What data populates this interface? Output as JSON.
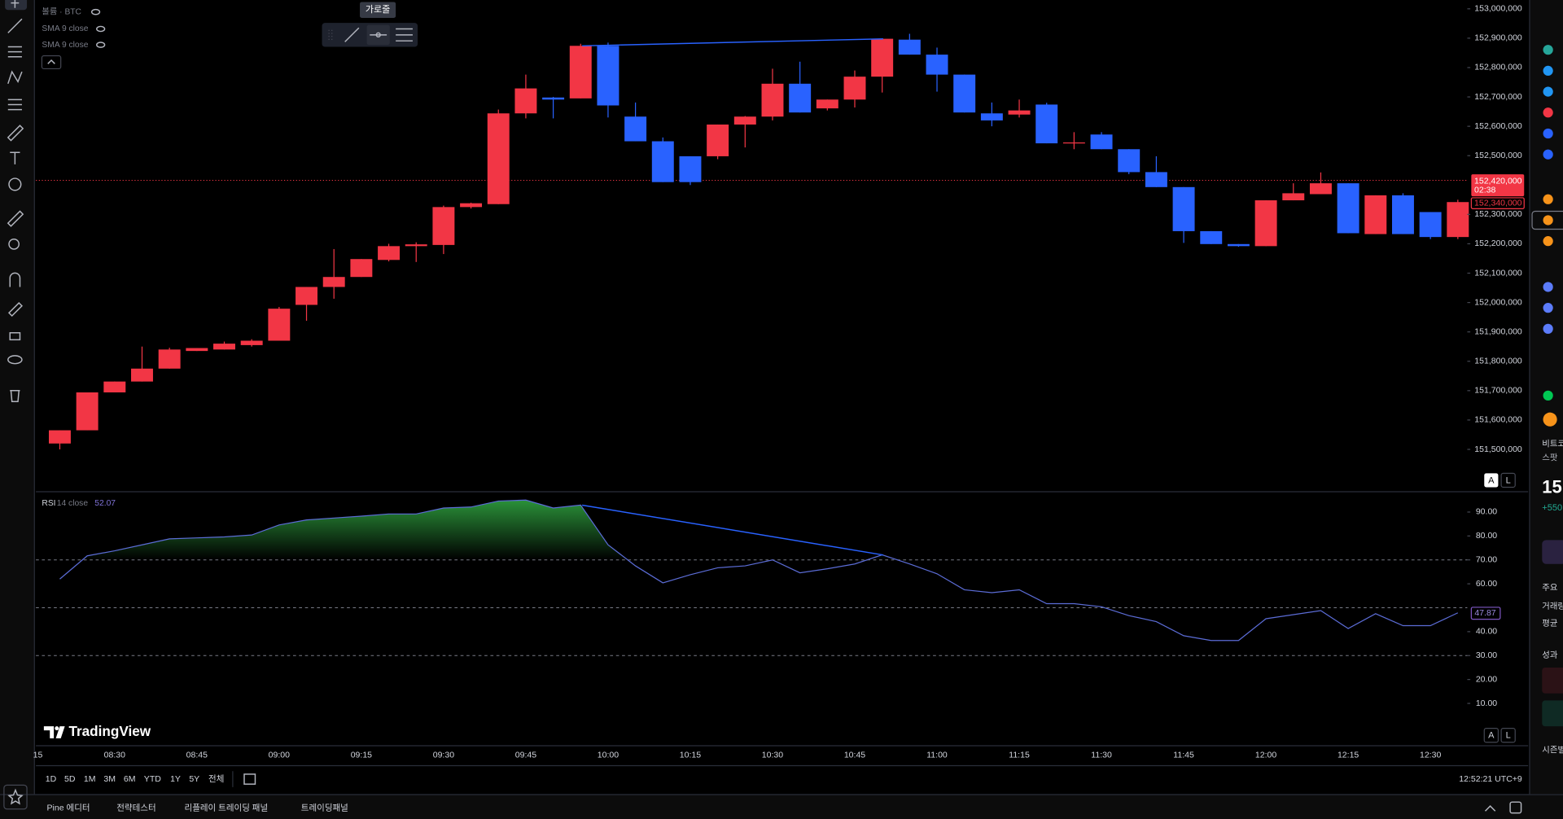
{
  "chart_data": [
    {
      "type": "candlestick",
      "categories": [
        null,
        null,
        "08:30",
        null,
        null,
        "08:45",
        null,
        null,
        "09:00",
        null,
        null,
        "09:15",
        null,
        null,
        "09:30",
        null,
        null,
        "09:45",
        null,
        null,
        "10:00",
        null,
        null,
        "10:15",
        null,
        null,
        "10:30",
        null,
        null,
        "10:45",
        null,
        null,
        "11:00",
        null,
        null,
        "11:15",
        null,
        null,
        "11:30",
        null,
        null,
        "11:45",
        null,
        null,
        "12:00",
        null,
        null,
        "12:15",
        null,
        null,
        "12:30",
        null
      ],
      "open": [
        151520000,
        151565000,
        151694000,
        151731000,
        151775000,
        151835000,
        151840000,
        151855000,
        151870000,
        151992000,
        152053000,
        152087000,
        152145000,
        152192000,
        152196000,
        152325000,
        152335000,
        152644000,
        152698000,
        152695000,
        152874000,
        152633000,
        152549000,
        152498000,
        152498000,
        152606000,
        152633000,
        152745000,
        152661000,
        152691000,
        152769000,
        152895000,
        152844000,
        152776000,
        152644000,
        152640000,
        152674000,
        152542000,
        152572000,
        152522000,
        152444000,
        152393000,
        152243000,
        152199000,
        152192000,
        152348000,
        152369000,
        152406000,
        152233000,
        152365000,
        152308000,
        152223000
      ],
      "high": [
        151565000,
        151694000,
        151731000,
        151850000,
        151846000,
        151845000,
        151867000,
        151875000,
        151985000,
        152053000,
        152182000,
        152148000,
        152200000,
        152205000,
        152330000,
        152340000,
        152657000,
        152776000,
        152700000,
        152881000,
        152885000,
        152681000,
        152562000,
        152498000,
        152606000,
        152635000,
        152796000,
        152820000,
        152691000,
        152790000,
        152898000,
        152915000,
        152868000,
        152776000,
        152681000,
        152691000,
        152680000,
        152580000,
        152580000,
        152522000,
        152498000,
        152393000,
        152243000,
        152199000,
        152348000,
        152406000,
        152443000,
        152406000,
        152365000,
        152372000,
        152308000,
        152350000
      ],
      "low": [
        151500000,
        151565000,
        151694000,
        151731000,
        151775000,
        151835000,
        151840000,
        151850000,
        151870000,
        151938000,
        152013000,
        152087000,
        152140000,
        152138000,
        152165000,
        152320000,
        152335000,
        152627000,
        152627000,
        152695000,
        152630000,
        152549000,
        152410000,
        152400000,
        152488000,
        152528000,
        152620000,
        152647000,
        152654000,
        152664000,
        152715000,
        152844000,
        152718000,
        152647000,
        152600000,
        152630000,
        152542000,
        152522000,
        152522000,
        152437000,
        152393000,
        152203000,
        152199000,
        152190000,
        152192000,
        152348000,
        152369000,
        152236000,
        152233000,
        152233000,
        152216000,
        152216000
      ],
      "close": [
        151565000,
        151694000,
        151731000,
        151775000,
        151840000,
        151845000,
        151860000,
        151870000,
        151979000,
        152053000,
        152087000,
        152148000,
        152192000,
        152198000,
        152325000,
        152338000,
        152644000,
        152729000,
        152691000,
        152874000,
        152671000,
        152549000,
        152410000,
        152410000,
        152606000,
        152633000,
        152745000,
        152647000,
        152691000,
        152769000,
        152898000,
        152844000,
        152776000,
        152647000,
        152620000,
        152654000,
        152542000,
        152545000,
        152522000,
        152444000,
        152393000,
        152243000,
        152199000,
        152192000,
        152348000,
        152372000,
        152406000,
        152236000,
        152365000,
        152233000,
        152223000,
        152342000
      ],
      "up_color": "#f23645",
      "down_color": "#2962ff",
      "ylim": [
        151361000,
        153030000
      ],
      "yticks": [
        {
          "value": 151500000,
          "label": "151,500,000"
        },
        {
          "value": 151600000,
          "label": "151,600,000"
        },
        {
          "value": 151700000,
          "label": "151,700,000"
        },
        {
          "value": 151800000,
          "label": "151,800,000"
        },
        {
          "value": 151900000,
          "label": "151,900,000"
        },
        {
          "value": 152000000,
          "label": "152,000,000"
        },
        {
          "value": 152100000,
          "label": "152,100,000"
        },
        {
          "value": 152200000,
          "label": "152,200,000"
        },
        {
          "value": 152300000,
          "label": "152,300,000"
        },
        {
          "value": 152500000,
          "label": "152,500,000"
        },
        {
          "value": 152600000,
          "label": "152,600,000"
        },
        {
          "value": 152700000,
          "label": "152,700,000"
        },
        {
          "value": 152800000,
          "label": "152,800,000"
        },
        {
          "value": 152900000,
          "label": "152,900,000"
        },
        {
          "value": 153000000,
          "label": "153,000,000"
        }
      ],
      "grid": false
    },
    {
      "type": "line",
      "title": "RSI",
      "subtitle": "14 close",
      "color": "#5b6cd6",
      "values": [
        62.0,
        71.7,
        73.8,
        76.3,
        78.8,
        79.2,
        79.6,
        80.4,
        84.6,
        86.7,
        87.5,
        88.3,
        89.2,
        89.2,
        91.7,
        92.1,
        94.6,
        95.0,
        91.7,
        92.9,
        76.3,
        67.5,
        60.4,
        63.8,
        66.7,
        67.5,
        70.0,
        64.6,
        66.3,
        68.3,
        72.1,
        68.3,
        64.2,
        57.5,
        56.3,
        57.5,
        51.7,
        51.7,
        50.4,
        46.7,
        44.2,
        38.3,
        36.3,
        36.3,
        45.4,
        47.1,
        48.8,
        41.3,
        47.5,
        42.5,
        42.5,
        47.87
      ],
      "ylim": [
        -7.5,
        98.3
      ],
      "yticks": [
        {
          "value": 10,
          "label": "10.00"
        },
        {
          "value": 20,
          "label": "20.00"
        },
        {
          "value": 30,
          "label": "30.00"
        },
        {
          "value": 40,
          "label": "40.00"
        },
        {
          "value": 60,
          "label": "60.00"
        },
        {
          "value": 70,
          "label": "70.00"
        },
        {
          "value": 80,
          "label": "80.00"
        },
        {
          "value": 90,
          "label": "90.00"
        }
      ],
      "levels": [
        30,
        50,
        70
      ],
      "fill_above": 70,
      "fill_color": "#2e9e3e",
      "grid": false
    }
  ],
  "ui": {
    "legend": {
      "volume": "볼륨 · BTC",
      "sma1": "SMA 9 close",
      "sma2": "SMA 9 close"
    },
    "tooltip": "가로줄",
    "rsi_value": "52.07",
    "price_labels": {
      "last": "152,420,000",
      "countdown": "02:38",
      "prev": "152,340,000"
    },
    "rsi_last": "47.87",
    "scale_buttons": [
      "A",
      "L"
    ],
    "x_partial": "15",
    "logo": "TradingView",
    "timeframes": [
      "1D",
      "5D",
      "1M",
      "3M",
      "6M",
      "YTD",
      "1Y",
      "5Y",
      "전체"
    ],
    "clock": "12:52:21 UTC+9",
    "tabs": [
      "Pine 에디터",
      "전략테스터",
      "리플레이 트레이딩 패널",
      "트레이딩패널"
    ],
    "side": [
      "비트코",
      "스팟",
      "15",
      "+550",
      "주요",
      "거래량",
      "평균",
      "성과",
      "시즌별"
    ]
  }
}
